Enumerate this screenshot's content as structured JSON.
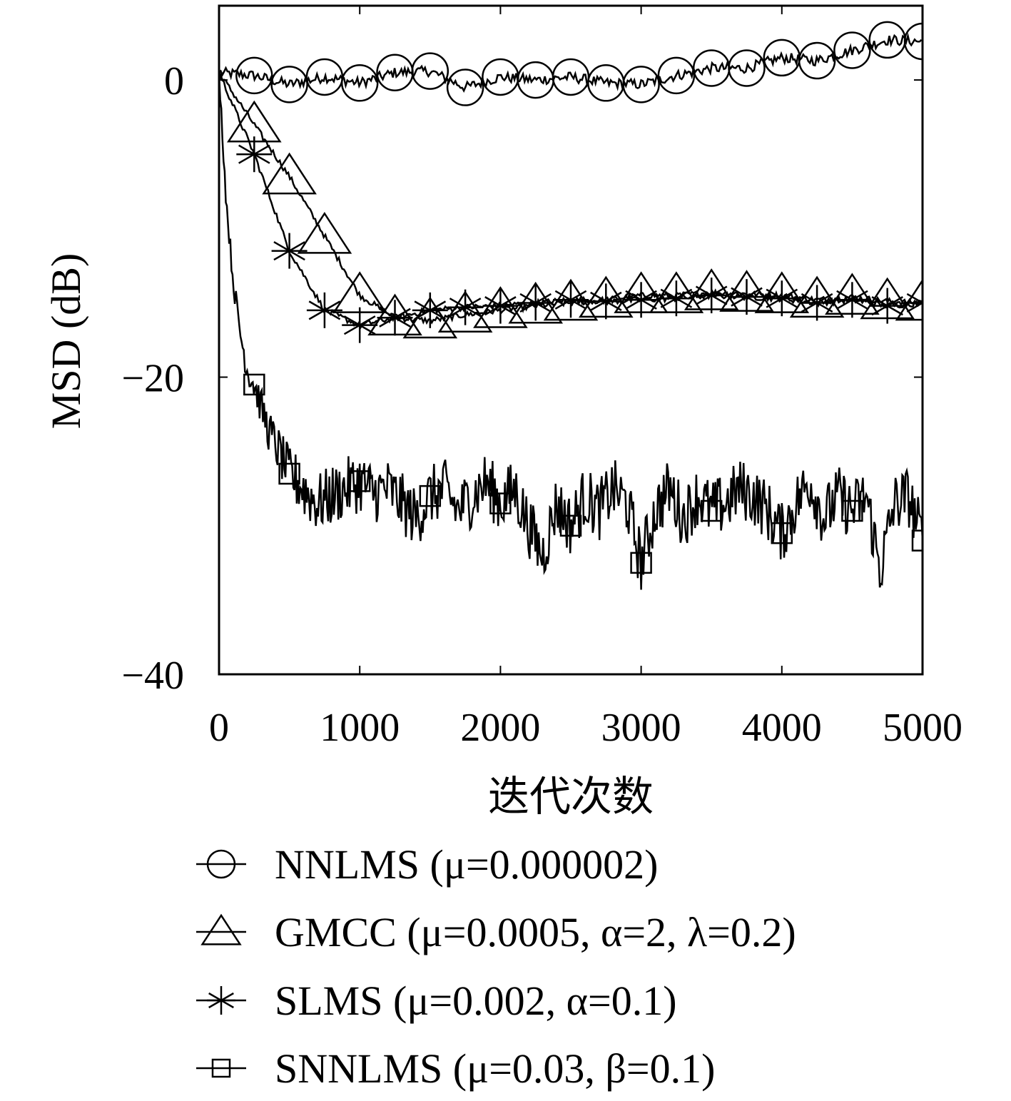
{
  "chart_data": {
    "type": "line",
    "title": "",
    "xlabel": "迭代次数",
    "ylabel": "MSD (dB)",
    "xlim": [
      0,
      5000
    ],
    "ylim": [
      -40,
      5
    ],
    "xticks": [
      0,
      1000,
      2000,
      3000,
      4000,
      5000
    ],
    "yticks": [
      0,
      -20,
      -40
    ],
    "xtick_labels": [
      "0",
      "1000",
      "2000",
      "3000",
      "4000",
      "5000"
    ],
    "ytick_labels": [
      "0",
      "−20",
      "−40"
    ],
    "grid": false,
    "legend_position": "bottom",
    "series": [
      {
        "name": "NNLMS (μ=0.000002)",
        "marker": "circle",
        "x": [
          0,
          250,
          500,
          750,
          1000,
          1250,
          1500,
          1750,
          2000,
          2250,
          2500,
          2750,
          3000,
          3250,
          3500,
          3750,
          4000,
          4250,
          4500,
          4750,
          5000
        ],
        "y": [
          0.5,
          0.3,
          -0.3,
          0.2,
          -0.2,
          0.5,
          0.6,
          -0.5,
          0.2,
          0.0,
          0.2,
          -0.2,
          -0.3,
          0.3,
          0.8,
          0.8,
          1.5,
          1.3,
          2.0,
          2.7,
          2.6
        ]
      },
      {
        "name": "GMCC (μ=0.0005, α=2, λ=0.2)",
        "marker": "triangle",
        "x": [
          0,
          250,
          500,
          750,
          1000,
          1250,
          1500,
          1750,
          2000,
          2250,
          2500,
          2750,
          3000,
          3250,
          3500,
          3750,
          4000,
          4250,
          4500,
          4750,
          5000
        ],
        "y": [
          0.5,
          -3.0,
          -6.5,
          -10.5,
          -14.5,
          -16.0,
          -16.2,
          -15.8,
          -15.5,
          -15.2,
          -15.0,
          -14.8,
          -14.5,
          -14.5,
          -14.3,
          -14.4,
          -14.5,
          -14.8,
          -14.6,
          -14.9,
          -15.0
        ]
      },
      {
        "name": "SLMS (μ=0.002, α=0.1)",
        "marker": "star",
        "x": [
          0,
          250,
          500,
          750,
          1000,
          1250,
          1500,
          1750,
          2000,
          2250,
          2500,
          2750,
          3000,
          3250,
          3500,
          3750,
          4000,
          4250,
          4500,
          4750,
          5000
        ],
        "y": [
          0.5,
          -5.0,
          -11.5,
          -15.5,
          -16.5,
          -16.0,
          -15.5,
          -15.3,
          -15.2,
          -15.0,
          -14.8,
          -14.9,
          -14.8,
          -14.7,
          -14.5,
          -14.6,
          -14.7,
          -15.0,
          -14.8,
          -15.2,
          -15.0
        ]
      },
      {
        "name": "SNNLMS (μ=0.03, β=0.1)",
        "marker": "square",
        "x": [
          0,
          50,
          100,
          150,
          200,
          250,
          300,
          350,
          400,
          450,
          500,
          600,
          700,
          800,
          900,
          1000,
          1100,
          1200,
          1300,
          1400,
          1500,
          1600,
          1700,
          1800,
          1900,
          2000,
          2100,
          2200,
          2300,
          2400,
          2500,
          2600,
          2700,
          2800,
          2900,
          3000,
          3100,
          3200,
          3300,
          3400,
          3500,
          3600,
          3700,
          3800,
          3900,
          4000,
          4100,
          4200,
          4300,
          4400,
          4500,
          4600,
          4700,
          4800,
          4900,
          5000
        ],
        "y": [
          0.5,
          -8.0,
          -13.5,
          -17.0,
          -19.5,
          -20.5,
          -22.0,
          -23.5,
          -24.5,
          -25.5,
          -26.5,
          -27.5,
          -28.5,
          -28.0,
          -27.5,
          -27.0,
          -27.8,
          -27.5,
          -28.5,
          -29.5,
          -28.0,
          -27.5,
          -29.0,
          -28.0,
          -27.0,
          -28.5,
          -27.5,
          -30.0,
          -32.0,
          -28.5,
          -30.0,
          -28.0,
          -29.0,
          -27.5,
          -28.5,
          -32.5,
          -29.0,
          -27.5,
          -29.5,
          -28.0,
          -29.0,
          -28.5,
          -27.5,
          -28.0,
          -29.0,
          -30.5,
          -28.5,
          -27.0,
          -29.5,
          -28.0,
          -29.0,
          -28.0,
          -33.0,
          -28.5,
          -28.0,
          -31.0
        ]
      }
    ]
  }
}
